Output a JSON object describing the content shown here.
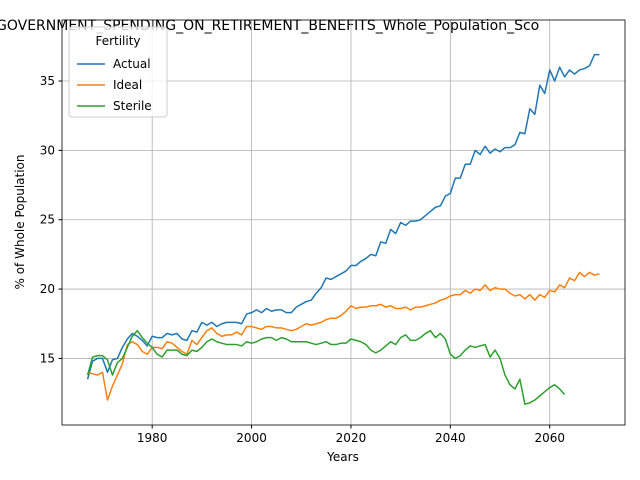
{
  "chart_data": {
    "type": "line",
    "title": "GOVERNMENT_SPENDING_ON_RETIREMENT_BENEFITS_Whole_Population_Sco",
    "x_label": "Years",
    "y_label": "% of Whole Population",
    "legend_title": "Fertility",
    "legend": "upper left",
    "grid": true,
    "x": [
      1967,
      1968,
      1969,
      1970,
      1971,
      1972,
      1973,
      1974,
      1975,
      1976,
      1977,
      1978,
      1979,
      1980,
      1981,
      1982,
      1983,
      1984,
      1985,
      1986,
      1987,
      1988,
      1989,
      1990,
      1991,
      1992,
      1993,
      1994,
      1995,
      1996,
      1997,
      1998,
      1999,
      2000,
      2001,
      2002,
      2003,
      2004,
      2005,
      2006,
      2007,
      2008,
      2009,
      2010,
      2011,
      2012,
      2013,
      2014,
      2015,
      2016,
      2017,
      2018,
      2019,
      2020,
      2021,
      2022,
      2023,
      2024,
      2025,
      2026,
      2027,
      2028,
      2029,
      2030,
      2031,
      2032,
      2033,
      2034,
      2035,
      2036,
      2037,
      2038,
      2039,
      2040,
      2041,
      2042,
      2043,
      2044,
      2045,
      2046,
      2047,
      2048,
      2049,
      2050,
      2051,
      2052,
      2053,
      2054,
      2055,
      2056,
      2057,
      2058,
      2059,
      2060,
      2061,
      2062,
      2063,
      2064,
      2065,
      2066,
      2067,
      2068,
      2069,
      2070
    ],
    "series": [
      {
        "name": "Actual",
        "color": "#1f77b4",
        "values": [
          13.5,
          14.8,
          15.0,
          15.0,
          14.0,
          14.9,
          15.0,
          15.8,
          16.4,
          16.8,
          16.6,
          16.3,
          15.9,
          16.6,
          16.5,
          16.5,
          16.8,
          16.7,
          16.8,
          16.4,
          16.3,
          17.0,
          16.9,
          17.6,
          17.4,
          17.6,
          17.3,
          17.5,
          17.6,
          17.6,
          17.6,
          17.5,
          18.2,
          18.3,
          18.5,
          18.3,
          18.6,
          18.4,
          18.5,
          18.5,
          18.3,
          18.3,
          18.7,
          18.9,
          19.1,
          19.2,
          19.7,
          20.1,
          20.8,
          20.7,
          20.9,
          21.1,
          21.3,
          21.7,
          21.7,
          22.0,
          22.2,
          22.5,
          22.4,
          23.4,
          23.3,
          24.3,
          24.0,
          24.8,
          24.6,
          24.9,
          24.9,
          25.0,
          25.3,
          25.6,
          25.9,
          26.0,
          26.7,
          26.9,
          28.0,
          28.0,
          29.0,
          29.0,
          30.0,
          29.7,
          30.3,
          29.8,
          30.1,
          29.9,
          30.2,
          30.2,
          30.4,
          31.3,
          31.2,
          33.0,
          32.6,
          34.7,
          34.1,
          35.8,
          35.0,
          36.0,
          35.3,
          35.8,
          35.5,
          35.8,
          35.9,
          36.1,
          36.9,
          36.9
        ]
      },
      {
        "name": "Ideal",
        "color": "#ff7f0e",
        "values": [
          14.0,
          13.9,
          13.8,
          14.0,
          12.0,
          13.0,
          13.8,
          14.6,
          16.0,
          16.2,
          16.0,
          15.5,
          15.3,
          15.8,
          15.8,
          15.7,
          16.2,
          16.1,
          15.8,
          15.5,
          15.3,
          16.3,
          16.0,
          16.5,
          17.0,
          17.2,
          16.8,
          16.6,
          16.7,
          16.7,
          16.9,
          16.7,
          17.3,
          17.3,
          17.2,
          17.1,
          17.3,
          17.3,
          17.2,
          17.2,
          17.1,
          17.0,
          17.1,
          17.3,
          17.5,
          17.4,
          17.5,
          17.6,
          17.8,
          17.9,
          17.9,
          18.1,
          18.4,
          18.8,
          18.6,
          18.7,
          18.7,
          18.8,
          18.8,
          18.9,
          18.7,
          18.8,
          18.6,
          18.6,
          18.7,
          18.5,
          18.7,
          18.7,
          18.8,
          18.9,
          19.0,
          19.2,
          19.3,
          19.5,
          19.6,
          19.6,
          19.9,
          19.7,
          20.0,
          19.9,
          20.3,
          19.9,
          20.1,
          20.0,
          20.0,
          19.7,
          19.5,
          19.6,
          19.3,
          19.6,
          19.2,
          19.6,
          19.4,
          19.9,
          19.8,
          20.3,
          20.1,
          20.8,
          20.6,
          21.2,
          20.9,
          21.2,
          21.0,
          21.1
        ]
      },
      {
        "name": "Sterile",
        "color": "#2ca02c",
        "values": [
          13.8,
          15.1,
          15.2,
          15.2,
          14.9,
          13.8,
          14.7,
          15.0,
          15.8,
          16.6,
          17.0,
          16.5,
          16.1,
          15.8,
          15.3,
          15.1,
          15.6,
          15.6,
          15.6,
          15.3,
          15.2,
          15.6,
          15.5,
          15.8,
          16.2,
          16.4,
          16.2,
          16.1,
          16.0,
          16.0,
          16.0,
          15.9,
          16.2,
          16.1,
          16.2,
          16.4,
          16.5,
          16.5,
          16.3,
          16.5,
          16.4,
          16.2,
          16.2,
          16.2,
          16.2,
          16.1,
          16.0,
          16.1,
          16.2,
          16.0,
          16.0,
          16.1,
          16.1,
          16.4,
          16.3,
          16.2,
          16.0,
          15.6,
          15.4,
          15.6,
          15.9,
          16.2,
          16.0,
          16.5,
          16.7,
          16.3,
          16.3,
          16.5,
          16.8,
          17.0,
          16.5,
          16.8,
          16.4,
          15.3,
          15.0,
          15.2,
          15.6,
          15.9,
          15.8,
          15.9,
          16.0,
          15.1,
          15.6,
          15.0,
          13.8,
          13.1,
          12.8,
          13.5,
          11.7,
          11.8,
          12.0,
          12.3,
          12.6,
          12.9,
          13.1,
          12.8,
          12.4,
          null,
          null,
          null,
          null,
          null,
          null,
          null
        ]
      }
    ],
    "xlim": [
      1961.85,
      2075.15
    ],
    "ylim": [
      10.2,
      39.4
    ],
    "xticks": [
      1980,
      2000,
      2020,
      2040,
      2060
    ],
    "yticks": [
      15,
      20,
      25,
      30,
      35
    ]
  }
}
